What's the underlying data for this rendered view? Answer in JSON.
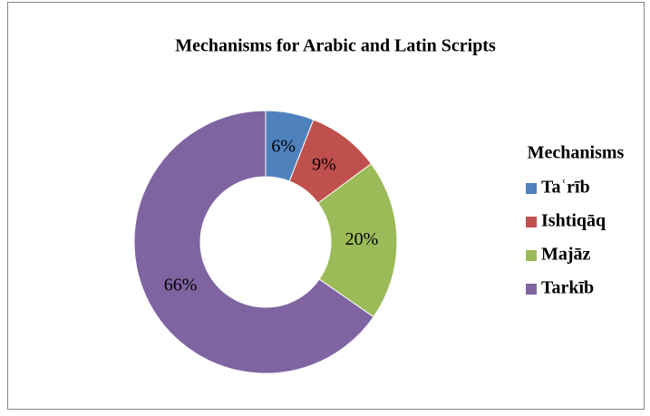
{
  "chart_data": {
    "type": "donut",
    "title": "Mechanisms for Arabic and Latin Scripts",
    "legend_title": "Mechanisms",
    "legend": "right",
    "categories": [
      "Taʿrīb",
      "Ishtiqāq",
      "Majāz",
      "Tarkīb"
    ],
    "values": [
      6,
      9,
      20,
      66
    ],
    "value_labels": [
      "6%",
      "9%",
      "20%",
      "66%"
    ],
    "colors": [
      "#4f81bd",
      "#c0504d",
      "#9bbb59",
      "#8064a2"
    ]
  }
}
